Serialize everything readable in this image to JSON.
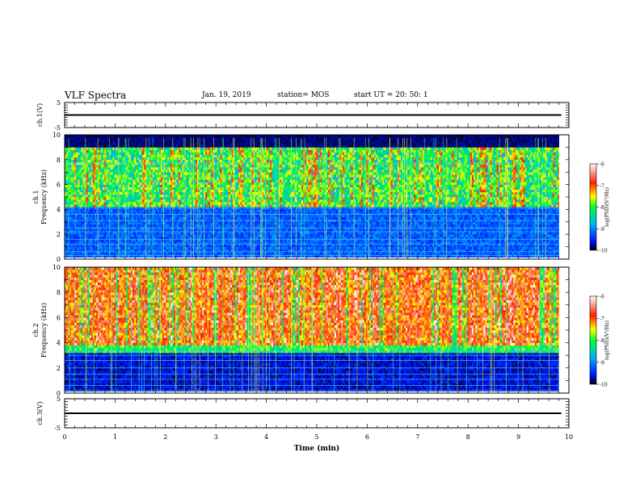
{
  "header": {
    "title": "VLF Spectra",
    "date": "Jan. 19, 2019",
    "station": "station= MOS",
    "start": "start  UT  =   20: 50: 1"
  },
  "chart_data": [
    {
      "type": "line",
      "ylabel": "ch.1(V)",
      "ylim": [
        -5,
        5
      ],
      "yticks": [
        "5",
        "-5"
      ],
      "xlim": [
        0,
        10
      ],
      "series": [
        {
          "x": [
            0,
            9.85
          ],
          "y": [
            0,
            0
          ]
        }
      ]
    },
    {
      "type": "heatmap",
      "ylabel": "ch.1\nFrequency (kHz)",
      "ylim": [
        0,
        10
      ],
      "yticks": [
        "0",
        "2",
        "4",
        "6",
        "8",
        "10"
      ],
      "xlim": [
        0,
        10
      ],
      "data_x_end": 9.85,
      "colorbar": {
        "label": "log(PSD)(V²/Hz)",
        "ticks": [
          "-6",
          "-7",
          "-8",
          "-9",
          "-10"
        ],
        "range": [
          -10,
          -6
        ]
      }
    },
    {
      "type": "heatmap",
      "ylabel": "ch.2\nFrequency (kHz)",
      "ylim": [
        0,
        10
      ],
      "yticks": [
        "0",
        "2",
        "4",
        "6",
        "8",
        "10"
      ],
      "xlim": [
        0,
        10
      ],
      "data_x_end": 9.85,
      "colorbar": {
        "label": "log(PSD)(V²/Hz)",
        "ticks": [
          "-6",
          "-7",
          "-8",
          "-9",
          "-10"
        ],
        "range": [
          -10,
          -6
        ]
      }
    },
    {
      "type": "line",
      "ylabel": "ch.3(V)",
      "ylim": [
        -5,
        5
      ],
      "yticks": [
        "5",
        "-5"
      ],
      "xlim": [
        0,
        10
      ],
      "xlabel": "Time (min)",
      "xticks": [
        "0",
        "1",
        "2",
        "3",
        "4",
        "5",
        "6",
        "7",
        "8",
        "9",
        "10"
      ],
      "series": [
        {
          "x": [
            0,
            9.85
          ],
          "y": [
            0,
            0
          ]
        }
      ]
    }
  ]
}
